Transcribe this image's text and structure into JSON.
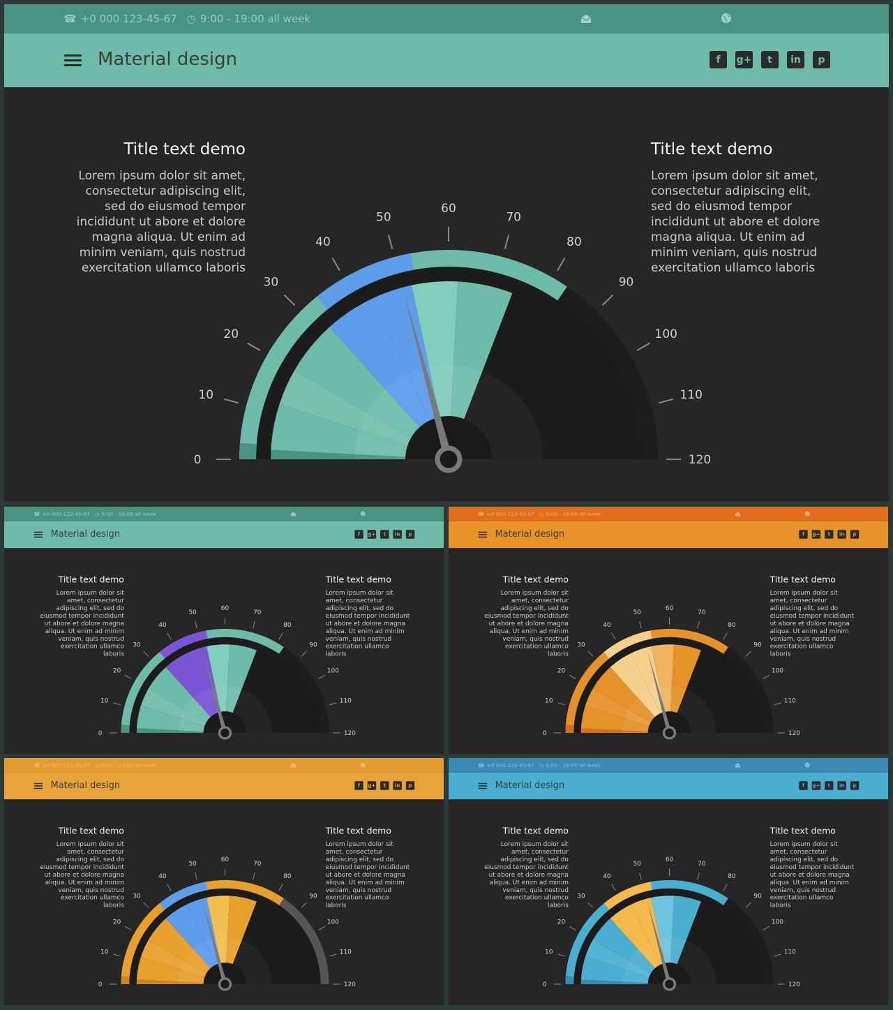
{
  "header": {
    "phone": "+0 000 123-45-67",
    "hours": "9:00 - 19:00  all week",
    "app_title": "Material design",
    "social": [
      "f",
      "g+",
      "t",
      "in",
      "p"
    ]
  },
  "content": {
    "left_title": "Title text demo",
    "left_body": "Lorem ipsum dolor sit amet, consectetur adipiscing elit, sed do eiusmod tempor incididunt ut abore et dolore magna aliqua. Ut enim ad minim veniam, quis nostrud exercitation ullamco laboris",
    "right_title": "Title text demo",
    "right_body": "Lorem ipsum dolor sit amet, consectetur adipiscing elit, sed do eiusmod tempor incididunt ut abore et dolore magna aliqua. Ut enim ad minim veniam, quis nostrud exercitation ullamco laboris"
  },
  "gauge": {
    "min": 0,
    "max": 120,
    "ticks": [
      "0",
      "10",
      "20",
      "30",
      "40",
      "50",
      "60",
      "70",
      "80",
      "90",
      "100",
      "110",
      "120"
    ],
    "needle_value": 50,
    "highlight_range": [
      34,
      53
    ],
    "fill_to": 83
  },
  "themes": [
    {
      "name": "teal",
      "top": "#4a9282",
      "nav": "#6fbba9",
      "main": "#6fbba9",
      "light": "#82cdbb",
      "dark": "#4a9282",
      "accent": "#5e9cec",
      "bar": "#1d1d1d"
    },
    {
      "name": "teal-purple",
      "top": "#4a9282",
      "nav": "#6fbba9",
      "main": "#6fbba9",
      "light": "#82cdbb",
      "dark": "#4a9282",
      "accent": "#7b55d6",
      "bar": "#1d1d1d"
    },
    {
      "name": "orange",
      "top": "#e06e1e",
      "nav": "#e79329",
      "main": "#e6922a",
      "light": "#f0b460",
      "dark": "#d0731d",
      "accent": "#f6d18e",
      "bar": "#1d1d1d"
    },
    {
      "name": "orange-blue",
      "top": "#e59b2f",
      "nav": "#e8a43a",
      "main": "#e8a02c",
      "light": "#f2c04e",
      "dark": "#cc8520",
      "accent": "#5e9cec",
      "bar": "#555555"
    },
    {
      "name": "blue",
      "top": "#3a8ab2",
      "nav": "#4aaed0",
      "main": "#4aaed0",
      "light": "#6cc4e0",
      "dark": "#3a8ab2",
      "accent": "#f5b84a",
      "bar": "#1d1d1d"
    }
  ]
}
